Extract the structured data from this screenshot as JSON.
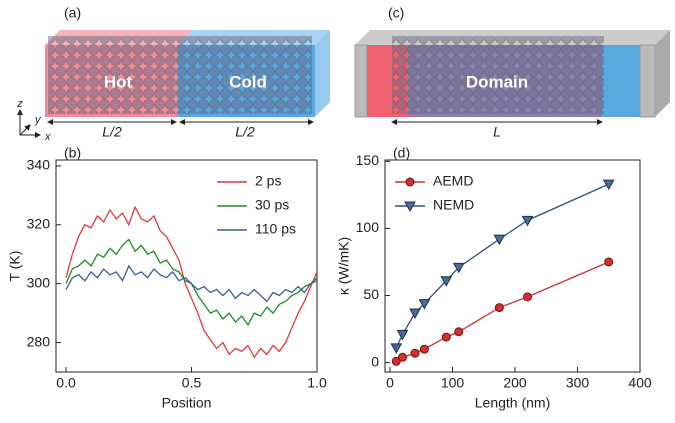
{
  "diagrams": [
    {
      "panel_label": "(a)",
      "labels": [
        "Hot",
        "Cold"
      ],
      "dimensions": [
        "L/2",
        "L/2"
      ],
      "axes": [
        "z",
        "y",
        "x"
      ]
    },
    {
      "panel_label": "(c)",
      "labels": [
        "Domain"
      ],
      "dimensions": [
        "L"
      ]
    }
  ],
  "chart_data": [
    {
      "type": "line",
      "panel_label": "(b)",
      "xlabel": "Position",
      "ylabel": "T (K)",
      "legend": "upper right",
      "xlim": [
        -0.04,
        1.0
      ],
      "ylim": [
        270,
        342
      ],
      "xticks": [
        {
          "value": 0,
          "label": "0.0"
        },
        {
          "value": 0.5,
          "label": "0.5"
        },
        {
          "value": 1,
          "label": "1.0"
        }
      ],
      "yticks": [
        280,
        300,
        320,
        340
      ],
      "x": [
        0,
        0.025,
        0.05,
        0.075,
        0.1,
        0.125,
        0.15,
        0.175,
        0.2,
        0.225,
        0.25,
        0.275,
        0.3,
        0.325,
        0.35,
        0.375,
        0.4,
        0.425,
        0.45,
        0.475,
        0.5,
        0.525,
        0.55,
        0.575,
        0.6,
        0.625,
        0.65,
        0.675,
        0.7,
        0.725,
        0.75,
        0.775,
        0.8,
        0.825,
        0.85,
        0.875,
        0.9,
        0.925,
        0.95,
        0.975,
        1.0
      ],
      "series": [
        {
          "name": "2 ps",
          "color": "#e03a3a",
          "values": [
            302,
            310,
            316,
            320,
            319,
            323,
            321,
            325,
            322,
            324,
            320,
            326,
            322,
            321,
            323,
            318,
            316,
            312,
            308,
            300,
            295,
            290,
            284,
            281,
            278,
            280,
            276,
            278,
            277,
            279,
            275,
            278,
            276,
            279,
            277,
            280,
            285,
            290,
            294,
            299,
            304
          ]
        },
        {
          "name": "30 ps",
          "color": "#1f8a1f",
          "values": [
            300,
            305,
            306,
            308,
            306,
            310,
            309,
            312,
            310,
            313,
            315,
            311,
            313,
            310,
            311,
            307,
            308,
            305,
            304,
            301,
            300,
            296,
            293,
            290,
            291,
            288,
            290,
            287,
            289,
            286,
            290,
            289,
            292,
            290,
            293,
            294,
            296,
            297,
            299,
            300,
            302
          ]
        },
        {
          "name": "110 ps",
          "color": "#3d5c99",
          "values": [
            298,
            302,
            303,
            301,
            304,
            302,
            305,
            303,
            304,
            301,
            306,
            303,
            304,
            302,
            305,
            303,
            302,
            304,
            301,
            302,
            300,
            298,
            299,
            297,
            298,
            296,
            298,
            295,
            297,
            296,
            298,
            296,
            294,
            297,
            296,
            298,
            297,
            299,
            297,
            300,
            301
          ]
        }
      ]
    },
    {
      "type": "line",
      "panel_label": "(d)",
      "xlabel": "Length (nm)",
      "ylabel": "κ (W/mK)",
      "legend": "upper left",
      "xlim": [
        -8,
        400
      ],
      "ylim": [
        -7,
        151
      ],
      "xticks": [
        0,
        100,
        200,
        300,
        400
      ],
      "yticks": [
        0,
        50,
        100,
        150
      ],
      "series": [
        {
          "name": "AEMD",
          "color": "#d03030",
          "marker": "circle",
          "x": [
            10,
            20,
            40,
            55,
            90,
            110,
            175,
            220,
            350
          ],
          "values": [
            1,
            4,
            7,
            10,
            19,
            23,
            41,
            49,
            75
          ]
        },
        {
          "name": "NEMD",
          "color": "#2f4f80",
          "marker": "triangle-down",
          "x": [
            10,
            20,
            40,
            55,
            90,
            110,
            175,
            220,
            350
          ],
          "values": [
            11,
            21,
            37,
            44,
            61,
            71,
            92,
            106,
            133
          ]
        }
      ]
    }
  ]
}
